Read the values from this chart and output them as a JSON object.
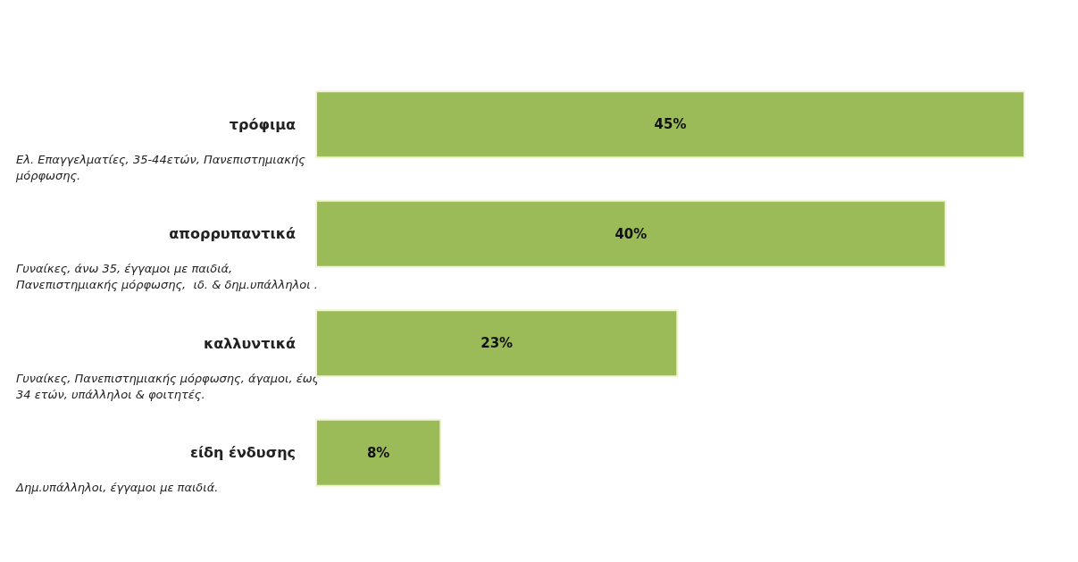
{
  "chart_data": {
    "type": "bar",
    "orientation": "horizontal",
    "categories": [
      "τρόφιμα",
      "απορρυπαντικά",
      "καλλυντικά",
      "είδη ένδυσης"
    ],
    "values": [
      45,
      40,
      23,
      8
    ],
    "value_labels": [
      "45%",
      "40%",
      "23%",
      "8%"
    ],
    "color": "#9bbb59",
    "annotations": [
      "Ελ. Επαγγελματίες, 35-44ετών, Πανεπιστημιακής μόρφωσης.",
      "Γυναίκες, άνω 35, έγγαμοι με παιδιά, Πανεπιστημιακής μόρφωσης,  ιδ. & δημ.υπάλληλοι .",
      "Γυναίκες, Πανεπιστημιακής μόρφωσης, άγαμοι, έως 34 ετών, υπάλληλοι & φοιτητές.",
      "Δημ.υπάλληλοι, έγγαμοι με παιδιά."
    ]
  }
}
